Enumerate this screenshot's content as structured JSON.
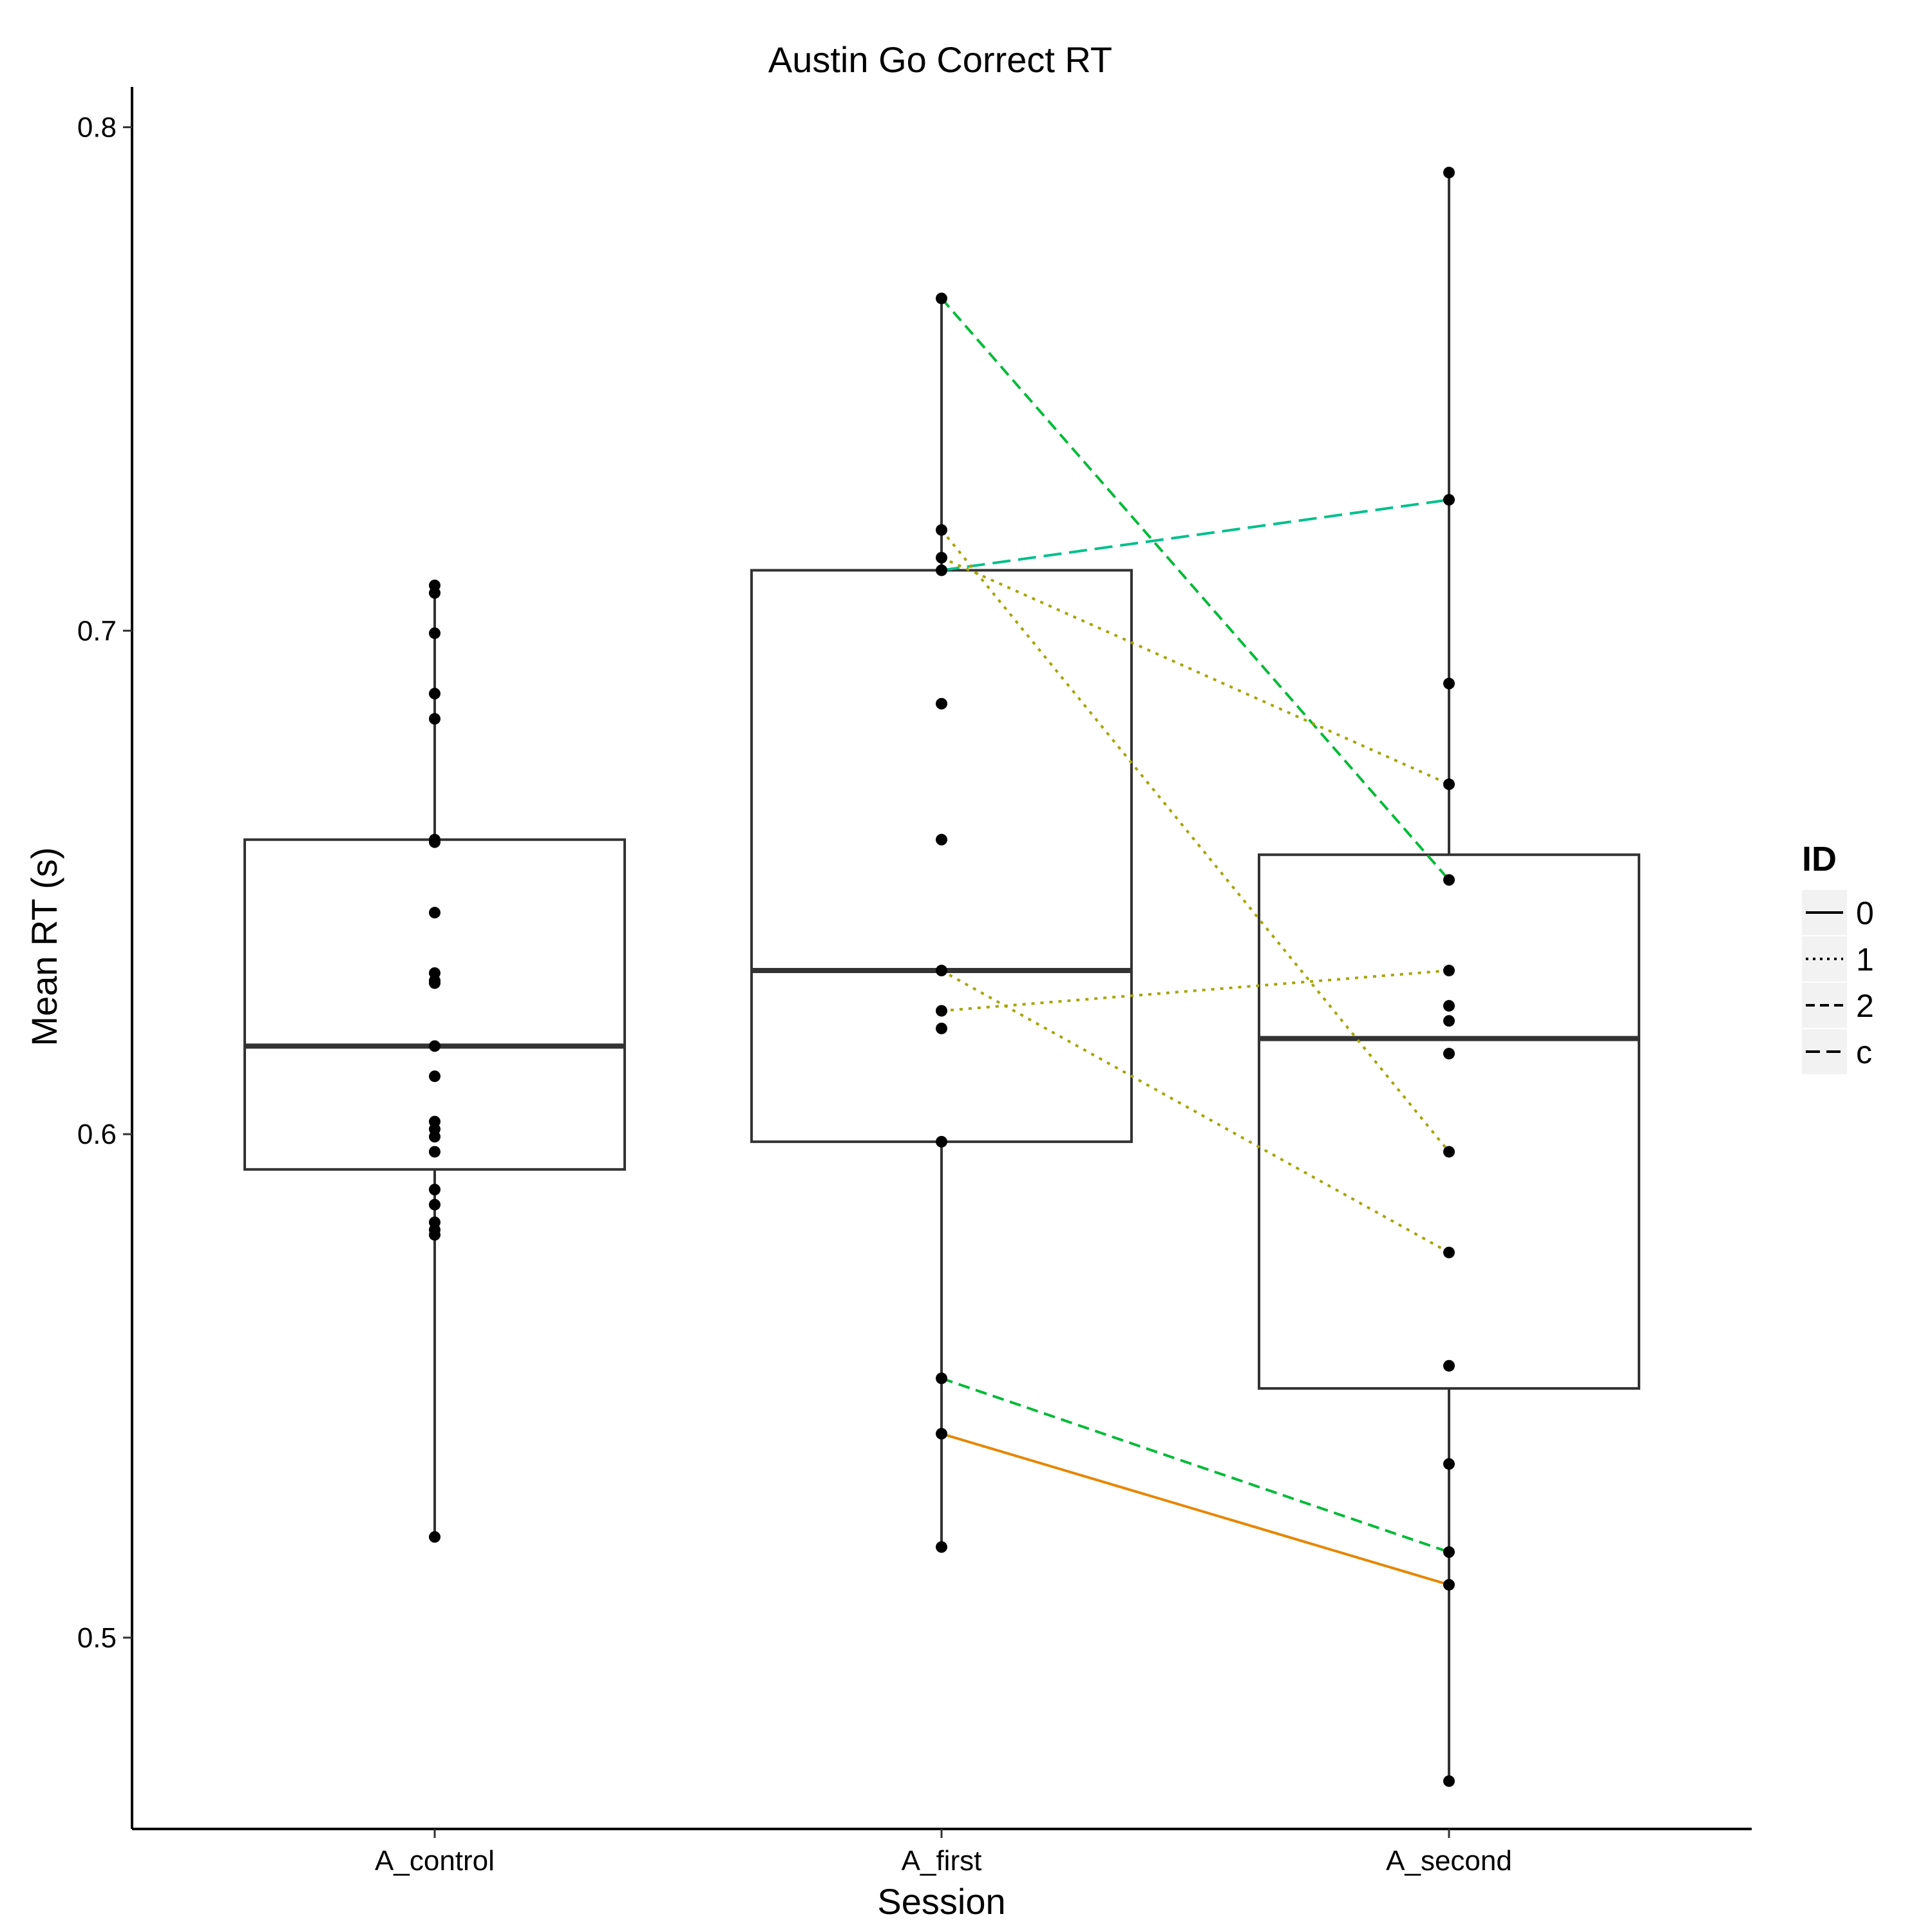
{
  "chart_data": {
    "type": "boxplot",
    "title": "Austin Go Correct RT",
    "xlabel": "Session",
    "ylabel": "Mean RT (s)",
    "categories": [
      "A_control",
      "A_first",
      "A_second"
    ],
    "ylim": [
      0.462,
      0.808
    ],
    "yticks": [
      0.5,
      0.6,
      0.7,
      0.8
    ],
    "yticks_labels": [
      "0.5",
      "0.6",
      "0.7",
      "0.8"
    ],
    "grid": false,
    "boxes": [
      {
        "category": "A_control",
        "min": 0.52,
        "q1": 0.593,
        "median": 0.6175,
        "q3": 0.6585,
        "max": 0.709
      },
      {
        "category": "A_first",
        "min": 0.518,
        "q1": 0.5985,
        "median": 0.6325,
        "q3": 0.712,
        "max": 0.766
      },
      {
        "category": "A_second",
        "min": 0.4715,
        "q1": 0.5495,
        "median": 0.619,
        "q3": 0.6555,
        "max": 0.791
      }
    ],
    "points": [
      {
        "category": "A_control",
        "values": [
          0.709,
          0.7075,
          0.6995,
          0.6875,
          0.6825,
          0.6585,
          0.658,
          0.644,
          0.632,
          0.6305,
          0.63,
          0.6175,
          0.6115,
          0.6025,
          0.601,
          0.5995,
          0.5965,
          0.589,
          0.586,
          0.5825,
          0.581,
          0.58,
          0.52
        ]
      },
      {
        "category": "A_first",
        "values": [
          0.766,
          0.72,
          0.7145,
          0.712,
          0.6855,
          0.6585,
          0.6325,
          0.6245,
          0.621,
          0.5985,
          0.5515,
          0.5405,
          0.518
        ]
      },
      {
        "category": "A_second",
        "values": [
          0.791,
          0.726,
          0.6895,
          0.6695,
          0.6505,
          0.6325,
          0.6255,
          0.6225,
          0.616,
          0.5965,
          0.5765,
          0.554,
          0.5345,
          0.517,
          0.5105,
          0.4715
        ]
      }
    ],
    "legend": {
      "title": "ID",
      "position": "right",
      "entries": [
        {
          "label": "0",
          "linetype": "solid"
        },
        {
          "label": "1",
          "linetype": "dotted"
        },
        {
          "label": "2",
          "linetype": "dashed"
        },
        {
          "label": "c",
          "linetype": "longdash"
        }
      ]
    },
    "paired_lines": [
      {
        "id": "0",
        "linetype": "solid",
        "color": "#e58700",
        "from": 0.5405,
        "to": 0.5105
      },
      {
        "id": "2",
        "linetype": "dashed",
        "color": "#00ba38",
        "from": 0.766,
        "to": 0.6505
      },
      {
        "id": "2",
        "linetype": "dashed",
        "color": "#00ba38",
        "from": 0.5515,
        "to": 0.517
      },
      {
        "id": "c",
        "linetype": "longdash",
        "color": "#00c08b",
        "from": 0.712,
        "to": 0.726
      },
      {
        "id": "1",
        "linetype": "dotted",
        "color": "#a3a500",
        "from": 0.7145,
        "to": 0.6695
      },
      {
        "id": "1",
        "linetype": "dotted",
        "color": "#a3a500",
        "from": 0.72,
        "to": 0.5965
      },
      {
        "id": "1",
        "linetype": "dotted",
        "color": "#a3a500",
        "from": 0.6245,
        "to": 0.6325
      },
      {
        "id": "1",
        "linetype": "dotted",
        "color": "#a3a500",
        "from": 0.6325,
        "to": 0.5765
      }
    ],
    "colors": {
      "box_stroke": "#333333",
      "median": "#333333",
      "point": "#000000",
      "axis": "#000000",
      "legend_key_bg": "#f2f2f2"
    }
  }
}
